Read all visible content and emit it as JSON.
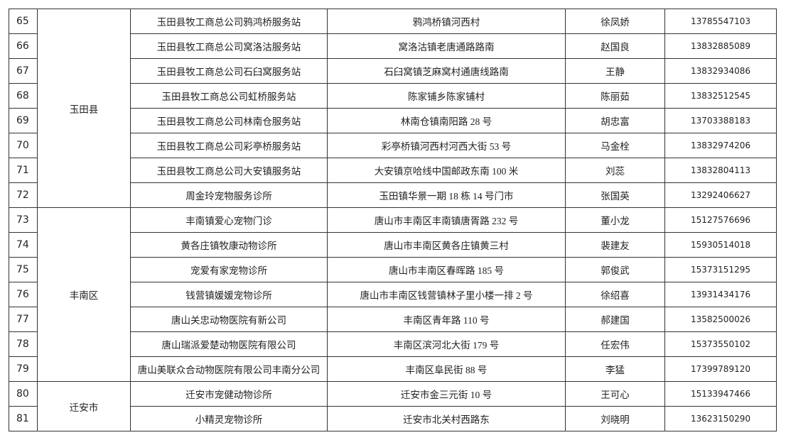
{
  "table": {
    "groups": [
      {
        "district": "玉田县",
        "rows": [
          [
            "65",
            "玉田县牧工商总公司鸦鸿桥服务站",
            "鸦鸿桥镇河西村",
            "徐凤娇",
            "13785547103"
          ],
          [
            "66",
            "玉田县牧工商总公司窝洛沽服务站",
            "窝洛沽镇老唐通路路南",
            "赵国良",
            "13832885089"
          ],
          [
            "67",
            "玉田县牧工商总公司石臼窝服务站",
            "石臼窝镇芝麻窝村通唐线路南",
            "王静",
            "13832934086"
          ],
          [
            "68",
            "玉田县牧工商总公司虹桥服务站",
            "陈家铺乡陈家铺村",
            "陈丽茹",
            "13832512545"
          ],
          [
            "69",
            "玉田县牧工商总公司林南仓服务站",
            "林南仓镇南阳路 28 号",
            "胡忠富",
            "13703388183"
          ],
          [
            "70",
            "玉田县牧工商总公司彩亭桥服务站",
            "彩亭桥镇河西村河西大街 53 号",
            "马金栓",
            "13832974206"
          ],
          [
            "71",
            "玉田县牧工商总公司大安镇服务站",
            "大安镇京哈线中国邮政东南 100 米",
            "刘蕊",
            "13832804113"
          ],
          [
            "72",
            "周金玲宠物服务诊所",
            "玉田镇华景一期 18 栋 14 号门市",
            "张国英",
            "13292406627"
          ]
        ]
      },
      {
        "district": "丰南区",
        "rows": [
          [
            "73",
            "丰南镇爱心宠物门诊",
            "唐山市丰南区丰南镇唐胥路 232 号",
            "董小龙",
            "15127576696"
          ],
          [
            "74",
            "黄各庄镇牧康动物诊所",
            "唐山市丰南区黄各庄镇黄三村",
            "裴建友",
            "15930514018"
          ],
          [
            "75",
            "宠爱有家宠物诊所",
            "唐山市丰南区春晖路 185 号",
            "郭俊武",
            "15373151295"
          ],
          [
            "76",
            "钱营镇媛媛宠物诊所",
            "唐山市丰南区钱营镇林子里小楼一排 2 号",
            "徐绍喜",
            "13931434176"
          ],
          [
            "77",
            "唐山关忠动物医院有新公司",
            "丰南区青年路 110 号",
            "郝建国",
            "13582500026"
          ],
          [
            "78",
            "唐山瑞派爱楚动物医院有限公司",
            "丰南区滨河北大街 179 号",
            "任宏伟",
            "15373550102"
          ],
          [
            "79",
            "唐山美联众合动物医院有限公司丰南分公司",
            "丰南区阜民街 88 号",
            "李猛",
            "17399789120"
          ]
        ]
      },
      {
        "district": "迁安市",
        "rows": [
          [
            "80",
            "迁安市宠健动物诊所",
            "迁安市金三元街 10 号",
            "王可心",
            "15133947466"
          ],
          [
            "81",
            "小精灵宠物诊所",
            "迁安市北关村西路东",
            "刘晓明",
            "13623150290"
          ]
        ]
      }
    ]
  }
}
